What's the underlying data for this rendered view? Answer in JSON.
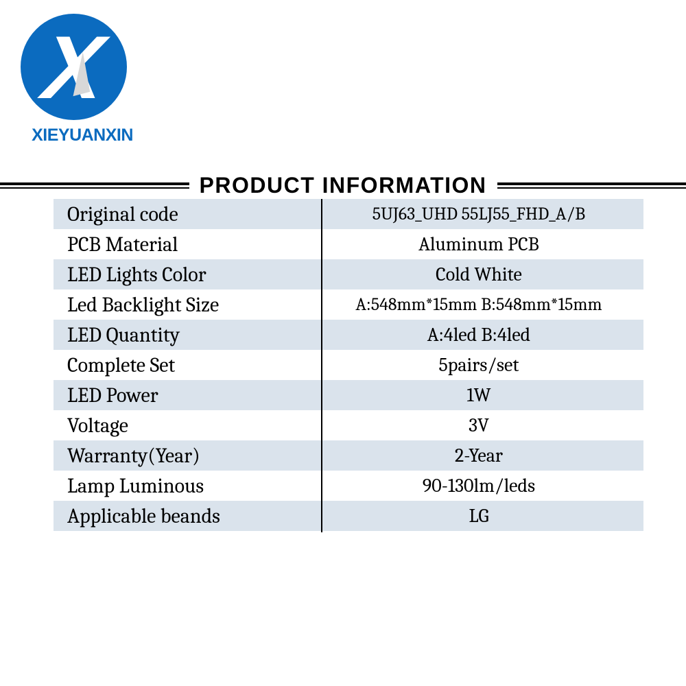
{
  "brand": {
    "name": "XIEYUANXIN",
    "logo_letter": "X",
    "logo_bg_color": "#0b6bbf",
    "logo_text_color": "#0b6bbf"
  },
  "header": {
    "title": "PRODUCT INFORMATION"
  },
  "colors": {
    "row_shaded": "#dae3ec",
    "row_plain": "#ffffff",
    "divider": "#000000",
    "text": "#000000"
  },
  "spec_rows": [
    {
      "label": "Original code",
      "value": "5UJ63_UHD 55LJ55_FHD_A/B",
      "shaded": true
    },
    {
      "label": "PCB Material",
      "value": "Aluminum PCB",
      "shaded": false
    },
    {
      "label": "LED Lights Color",
      "value": "Cold White",
      "shaded": true
    },
    {
      "label": "Led Backlight Size",
      "value": "A:548mm*15mm B:548mm*15mm",
      "shaded": false
    },
    {
      "label": "LED Quantity",
      "value": "A:4led   B:4led",
      "shaded": true
    },
    {
      "label": "Complete Set",
      "value": "5pairs/set",
      "shaded": false
    },
    {
      "label": "LED Power",
      "value": "1W",
      "shaded": true
    },
    {
      "label": "Voltage",
      "value": "3V",
      "shaded": false
    },
    {
      "label": "Warranty(Year)",
      "value": "2-Year",
      "shaded": true
    },
    {
      "label": "Lamp Luminous",
      "value": "90-130lm/leds",
      "shaded": false
    },
    {
      "label": "Applicable beands",
      "value": "LG",
      "shaded": true
    }
  ]
}
